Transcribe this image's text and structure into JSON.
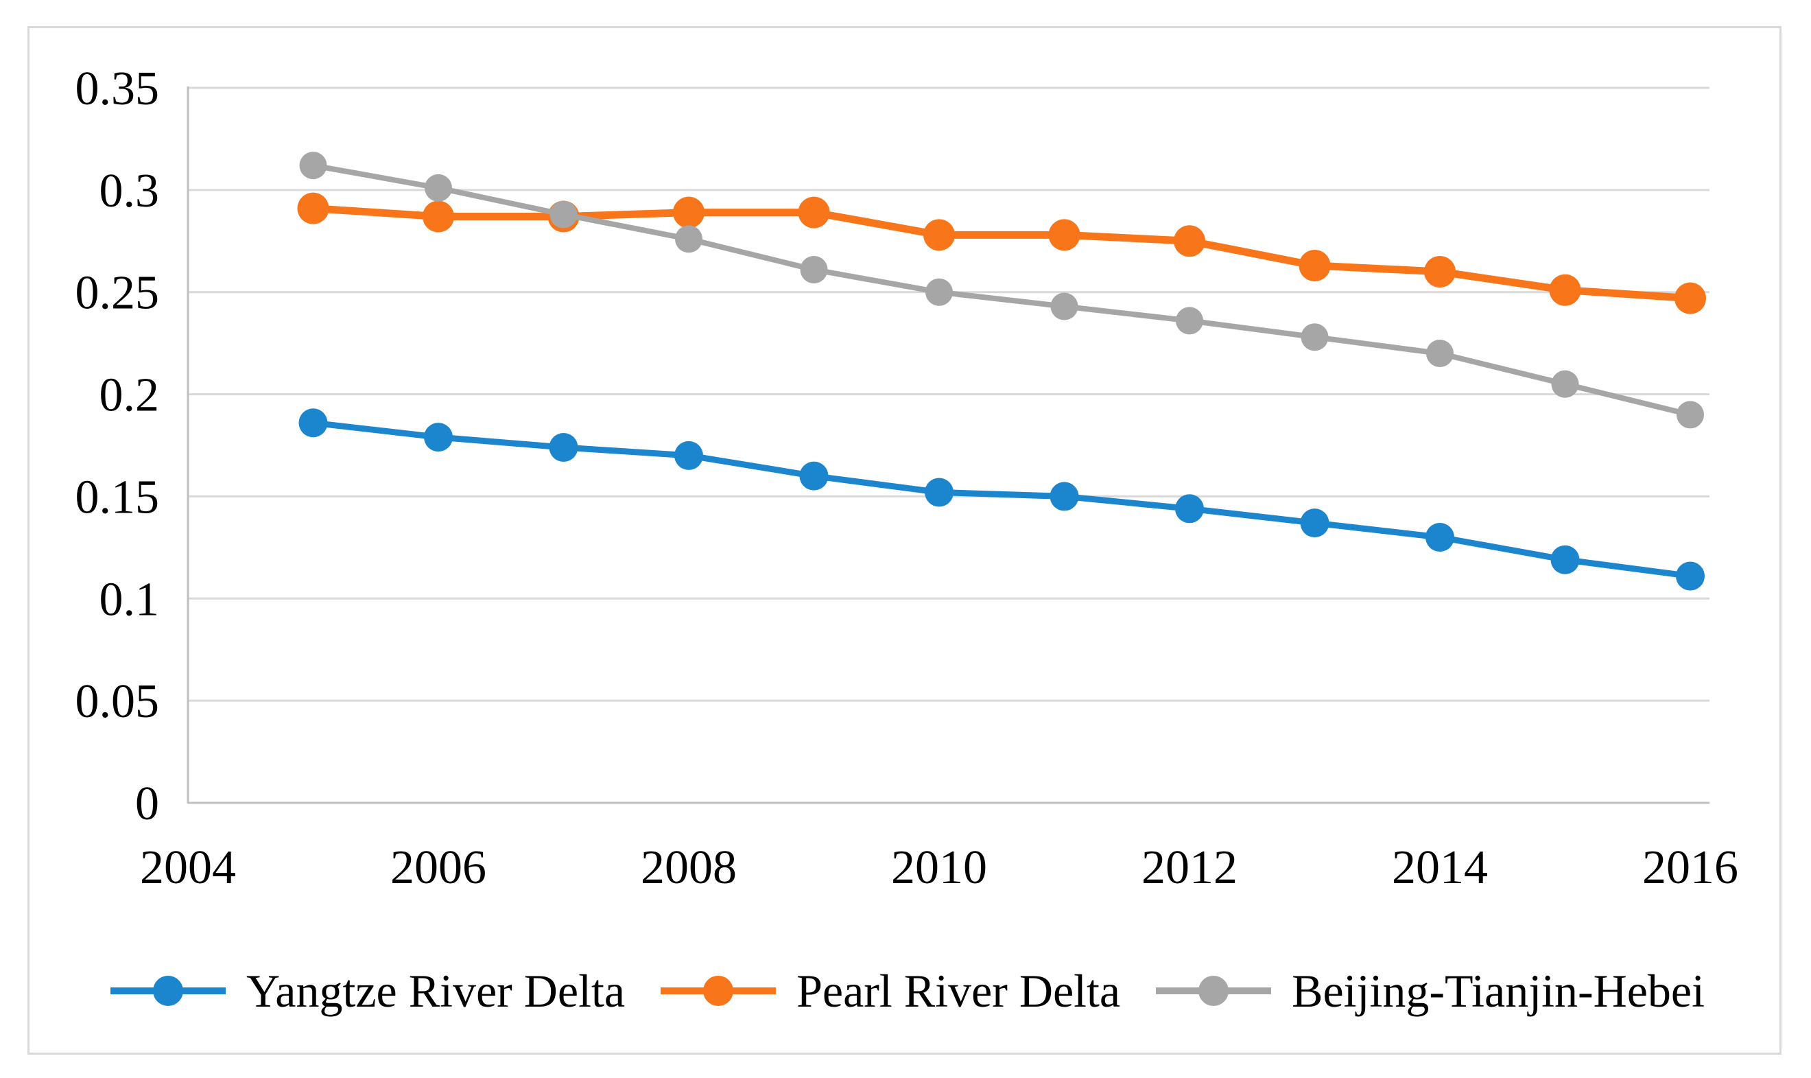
{
  "palette": {
    "background": "#FFFFFF",
    "frame_border": "#D9D9D9",
    "gridline": "#D9D9D9",
    "axis_line": "#BFBFBF",
    "text": "#000000"
  },
  "chart_data": {
    "type": "line",
    "title": "",
    "xlabel": "",
    "ylabel": "",
    "grid": true,
    "legend_position": "bottom",
    "x": [
      2005,
      2006,
      2007,
      2008,
      2009,
      2010,
      2011,
      2012,
      2013,
      2014,
      2015,
      2016
    ],
    "x_axis": {
      "min": 2004,
      "max": 2016.15,
      "tick_years": [
        2004,
        2006,
        2008,
        2010,
        2012,
        2014,
        2016
      ],
      "tick_labels": [
        "2004",
        "2006",
        "2008",
        "2010",
        "2012",
        "2014",
        "2016"
      ]
    },
    "y_axis": {
      "min": 0,
      "max": 0.35,
      "ticks": [
        0,
        0.05,
        0.1,
        0.15,
        0.2,
        0.25,
        0.3,
        0.35
      ],
      "tick_labels": [
        "0",
        "0.05",
        "0.1",
        "0.15",
        "0.2",
        "0.25",
        "0.3",
        "0.35"
      ]
    },
    "series": [
      {
        "name": "Yangtze River Delta",
        "color": "#1B86CE",
        "values": [
          0.186,
          0.179,
          0.174,
          0.17,
          0.16,
          0.152,
          0.15,
          0.144,
          0.137,
          0.13,
          0.119,
          0.111
        ]
      },
      {
        "name": "Pearl River Delta",
        "color": "#F87619",
        "values": [
          0.291,
          0.287,
          0.287,
          0.289,
          0.289,
          0.278,
          0.278,
          0.275,
          0.263,
          0.26,
          0.251,
          0.247
        ]
      },
      {
        "name": "Beijing-Tianjin-Hebei",
        "color": "#A6A6A6",
        "values": [
          0.312,
          0.301,
          0.288,
          0.276,
          0.261,
          0.25,
          0.243,
          0.236,
          0.228,
          0.22,
          0.205,
          0.19
        ]
      }
    ]
  }
}
